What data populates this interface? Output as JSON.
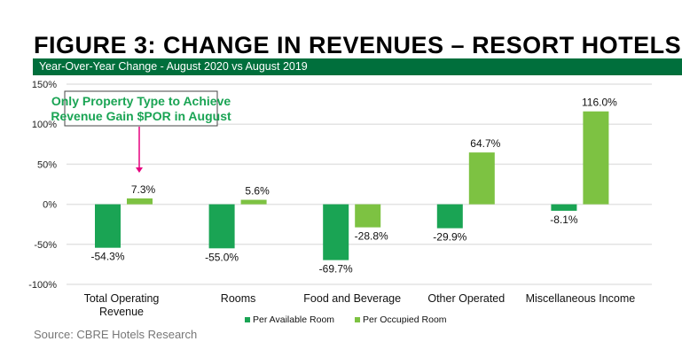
{
  "title": "FIGURE 3: CHANGE IN REVENUES – RESORT HOTELS",
  "subtitle": "Year-Over-Year Change - August 2020 vs August 2019",
  "source": "Source: CBRE Hotels Research",
  "annotation": {
    "lines": [
      "Only Property Type to Achieve",
      "Revenue Gain $POR in August"
    ],
    "color": "#1aa454",
    "arrow_color": "#e6007e",
    "target_category": "Total Operating Revenue"
  },
  "chart_data": {
    "type": "bar",
    "categories": [
      [
        "Total Operating",
        "Revenue"
      ],
      [
        "Rooms"
      ],
      [
        "Food and Beverage"
      ],
      [
        "Other Operated"
      ],
      [
        "Miscellaneous Income"
      ]
    ],
    "series": [
      {
        "name": "Per Available Room",
        "color": "#1aa454",
        "values": [
          -54.3,
          -55.0,
          -69.7,
          -29.9,
          -8.1
        ]
      },
      {
        "name": "Per Occupied Room",
        "color": "#7dc242",
        "values": [
          7.3,
          5.6,
          -28.8,
          64.7,
          116.0
        ]
      }
    ],
    "ylim": [
      -100,
      150
    ],
    "yticks": [
      150,
      100,
      50,
      0,
      -50,
      -100
    ],
    "ytick_labels": [
      "150%",
      "100%",
      "50%",
      "0%",
      "-50%",
      "-100%"
    ],
    "grid": true,
    "legend": "bottom"
  }
}
